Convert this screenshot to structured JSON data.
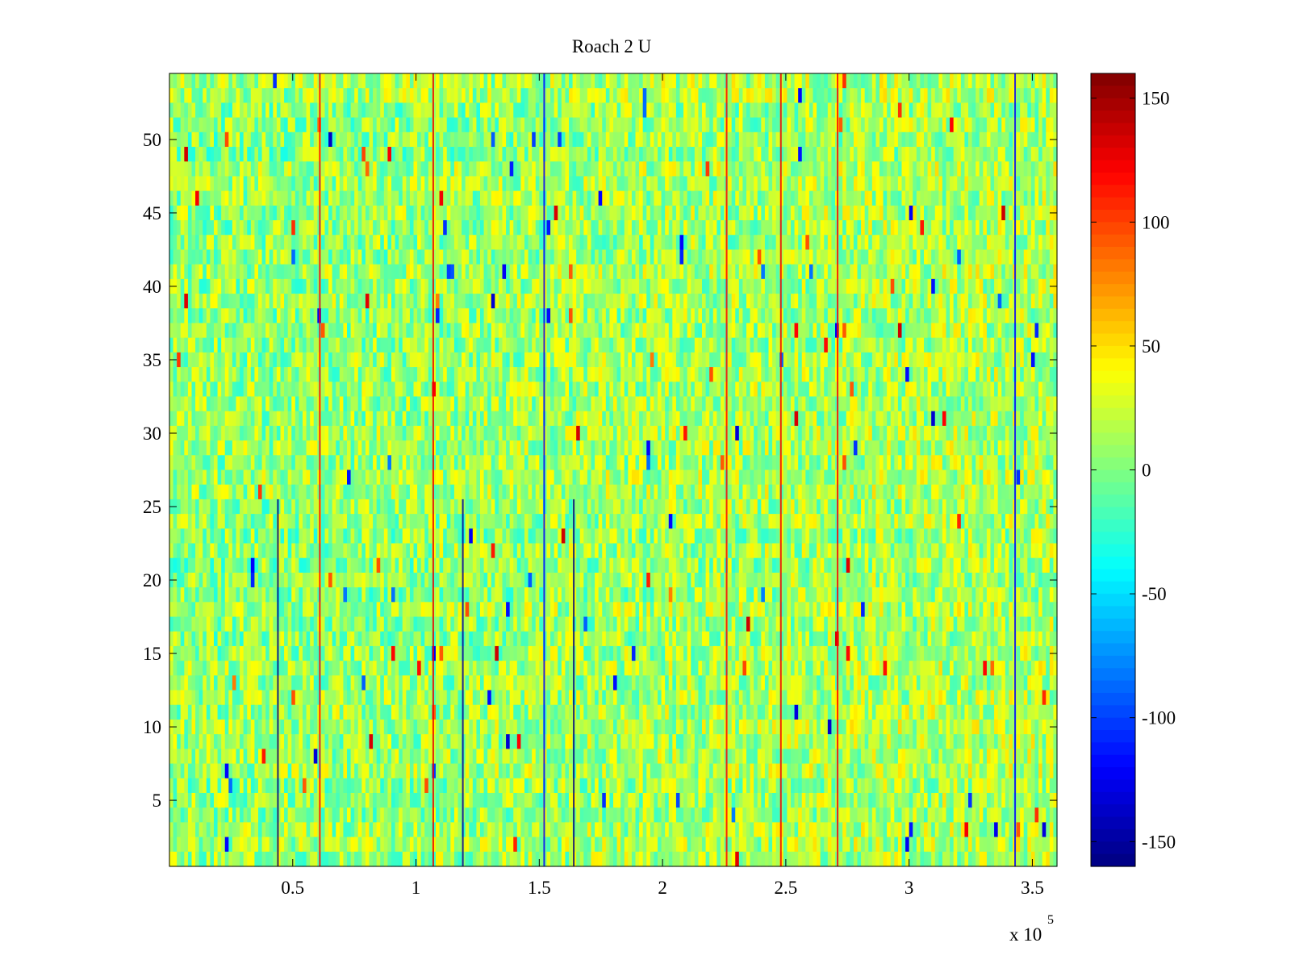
{
  "chart_data": {
    "type": "heatmap",
    "title": "Roach 2 U",
    "xlabel": "",
    "ylabel": "",
    "x_multiplier_label": {
      "base": "x 10",
      "exponent": "5"
    },
    "xlim": [
      0,
      3.6
    ],
    "ylim": [
      0.5,
      54.5
    ],
    "x_ticks": [
      0.5,
      1,
      1.5,
      2,
      2.5,
      3,
      3.5
    ],
    "x_tick_labels": [
      "0.5",
      "1",
      "1.5",
      "2",
      "2.5",
      "3",
      "3.5"
    ],
    "y_ticks": [
      5,
      10,
      15,
      20,
      25,
      30,
      35,
      40,
      45,
      50
    ],
    "y_tick_labels": [
      "5",
      "10",
      "15",
      "20",
      "25",
      "30",
      "35",
      "40",
      "45",
      "50"
    ],
    "rows": 54,
    "grid": false,
    "colormap": "jet",
    "color_range": [
      -160,
      160
    ],
    "colorbar": {
      "placement": "right",
      "ticks": [
        -150,
        -100,
        -50,
        0,
        50,
        100,
        150
      ],
      "tick_labels": [
        "-150",
        "-100",
        "-50",
        "0",
        "50",
        "100",
        "150"
      ]
    },
    "background_value_range": [
      -30,
      40
    ],
    "notable_columns": [
      {
        "x": 0.44,
        "rows": [
          1,
          25
        ],
        "value": -160
      },
      {
        "x": 0.61,
        "rows": [
          1,
          54
        ],
        "value": 120
      },
      {
        "x": 1.07,
        "rows": [
          1,
          54
        ],
        "value": 125
      },
      {
        "x": 1.19,
        "rows": [
          1,
          25
        ],
        "value": -150
      },
      {
        "x": 1.52,
        "rows": [
          1,
          54
        ],
        "value": -120
      },
      {
        "x": 1.64,
        "rows": [
          1,
          25
        ],
        "value": -160
      },
      {
        "x": 2.26,
        "rows": [
          1,
          54
        ],
        "value": 120
      },
      {
        "x": 2.48,
        "rows": [
          1,
          54
        ],
        "value": 125
      },
      {
        "x": 2.71,
        "rows": [
          1,
          54
        ],
        "value": 120
      },
      {
        "x": 3.43,
        "rows": [
          1,
          54
        ],
        "value": -120
      }
    ]
  }
}
